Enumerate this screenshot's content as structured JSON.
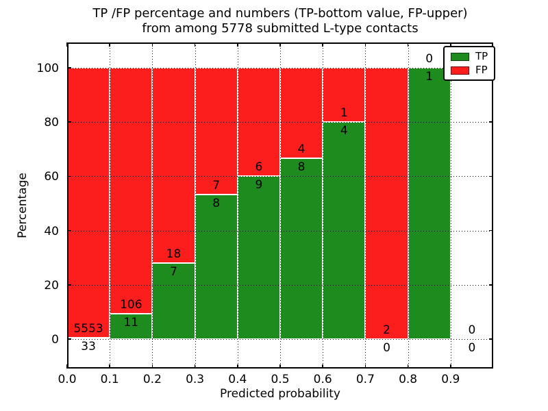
{
  "figure": {
    "title_line1": "TP /FP percentage and numbers (TP-bottom value, FP-upper)",
    "title_line2": "from among 5778 submitted L-type contacts",
    "xlabel": "Predicted probability",
    "ylabel": "Percentage"
  },
  "legend": {
    "position": "upper right",
    "entries": [
      {
        "label": "TP",
        "color": "#1e8b1e"
      },
      {
        "label": "FP",
        "color": "#fc1d1d"
      }
    ]
  },
  "colors": {
    "tp": "#1e8b1e",
    "fp": "#fc1d1d",
    "bar_edge": "#ffffff",
    "grid": "#000000",
    "frame": "#000000",
    "background": "#ffffff",
    "text": "#000000"
  },
  "chart_data": {
    "type": "bar",
    "stacked": true,
    "normalized_to_percent": 100,
    "title": "TP /FP percentage and numbers (TP-bottom value, FP-upper)\nfrom among 5778 submitted L-type contacts",
    "xlabel": "Predicted probability",
    "ylabel": "Percentage",
    "xlim": [
      0.0,
      1.0
    ],
    "ylim": [
      -11,
      109
    ],
    "x_tick_labels": [
      "0.0",
      "0.1",
      "0.2",
      "0.3",
      "0.4",
      "0.5",
      "0.6",
      "0.7",
      "0.8",
      "0.9"
    ],
    "x_tick_values": [
      0.0,
      0.1,
      0.2,
      0.3,
      0.4,
      0.5,
      0.6,
      0.7,
      0.8,
      0.9
    ],
    "y_tick_values": [
      0,
      20,
      40,
      60,
      80,
      100
    ],
    "grid": "dotted, drawn above bars",
    "bin_width": 0.1,
    "series_order_bottom_to_top": [
      "TP",
      "FP"
    ],
    "annotation_rule": "TP count below the TP/FP boundary, FP count above it",
    "total_submitted": 5778,
    "bins": [
      {
        "x_start": 0.0,
        "x_end": 0.1,
        "tp_count": 33,
        "fp_count": 5553,
        "tp_percent": 0.59
      },
      {
        "x_start": 0.1,
        "x_end": 0.2,
        "tp_count": 11,
        "fp_count": 106,
        "tp_percent": 9.4
      },
      {
        "x_start": 0.2,
        "x_end": 0.3,
        "tp_count": 7,
        "fp_count": 18,
        "tp_percent": 28.0
      },
      {
        "x_start": 0.3,
        "x_end": 0.4,
        "tp_count": 8,
        "fp_count": 7,
        "tp_percent": 53.33
      },
      {
        "x_start": 0.4,
        "x_end": 0.5,
        "tp_count": 9,
        "fp_count": 6,
        "tp_percent": 60.0
      },
      {
        "x_start": 0.5,
        "x_end": 0.6,
        "tp_count": 8,
        "fp_count": 4,
        "tp_percent": 66.67
      },
      {
        "x_start": 0.6,
        "x_end": 0.7,
        "tp_count": 4,
        "fp_count": 1,
        "tp_percent": 80.0
      },
      {
        "x_start": 0.7,
        "x_end": 0.8,
        "tp_count": 0,
        "fp_count": 2,
        "tp_percent": 0.0
      },
      {
        "x_start": 0.8,
        "x_end": 0.9,
        "tp_count": 1,
        "fp_count": 0,
        "tp_percent": 100.0
      },
      {
        "x_start": 0.9,
        "x_end": 1.0,
        "tp_count": 0,
        "fp_count": 0,
        "tp_percent": null
      }
    ]
  }
}
